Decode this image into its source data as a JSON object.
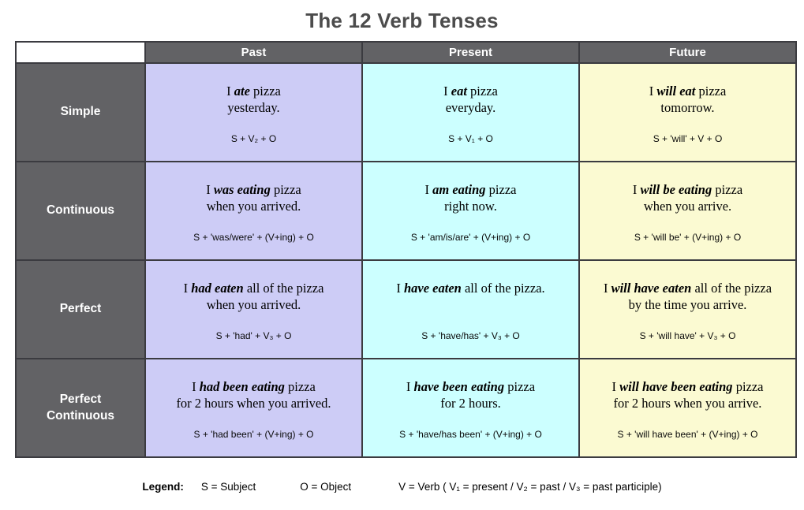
{
  "title": "The 12 Verb Tenses",
  "columns": [
    "Past",
    "Present",
    "Future"
  ],
  "rows": [
    {
      "label": "Simple",
      "cells": [
        {
          "pre": "I ",
          "verb": "ate",
          "post": " pizza",
          "line2": "yesterday.",
          "formula": "S + V₂ + O"
        },
        {
          "pre": "I ",
          "verb": "eat",
          "post": " pizza",
          "line2": "everyday.",
          "formula": "S + V₁ + O"
        },
        {
          "pre": "I ",
          "verb": "will eat",
          "post": " pizza",
          "line2": "tomorrow.",
          "formula": "S + 'will' + V + O"
        }
      ]
    },
    {
      "label": "Continuous",
      "cells": [
        {
          "pre": "I ",
          "verb": "was eating",
          "post": " pizza",
          "line2": "when you arrived.",
          "formula": "S + 'was/were' + (V+ing) + O"
        },
        {
          "pre": "I ",
          "verb": "am eating",
          "post": " pizza",
          "line2": "right now.",
          "formula": "S + 'am/is/are' + (V+ing) + O"
        },
        {
          "pre": "I ",
          "verb": "will be eating",
          "post": " pizza",
          "line2": "when you arrive.",
          "formula": "S + 'will be' + (V+ing) + O"
        }
      ]
    },
    {
      "label": "Perfect",
      "cells": [
        {
          "pre": "I ",
          "verb": "had eaten",
          "post": " all of the pizza",
          "line2": "when you arrived.",
          "formula": "S + 'had' + V₃ + O"
        },
        {
          "pre": "I ",
          "verb": "have eaten",
          "post": " all of the pizza.",
          "line2": "",
          "formula": "S + 'have/has' + V₃ + O"
        },
        {
          "pre": "I ",
          "verb": "will have eaten",
          "post": " all of the pizza",
          "line2": "by the time you arrive.",
          "formula": "S + 'will have' + V₃ + O"
        }
      ]
    },
    {
      "label": "Perfect\nContinuous",
      "cells": [
        {
          "pre": "I ",
          "verb": "had been eating",
          "post": " pizza",
          "line2": "for 2 hours when you arrived.",
          "formula": "S + 'had been' + (V+ing) + O"
        },
        {
          "pre": "I ",
          "verb": "have been eating",
          "post": " pizza",
          "line2": "for 2 hours.",
          "formula": "S + 'have/has been' + (V+ing) + O"
        },
        {
          "pre": "I ",
          "verb": "will have been eating",
          "post": " pizza",
          "line2": "for 2 hours when you arrive.",
          "formula": "S + 'will have been' + (V+ing) + O"
        }
      ]
    }
  ],
  "legend": {
    "label": "Legend:",
    "items": [
      "S = Subject",
      "O = Object",
      "V = Verb  ( V₁ = present  /  V₂ = past  /  V₃ = past participle)"
    ]
  },
  "colors": {
    "header_bg": "#626265",
    "past_bg": "#cdccf6",
    "present_bg": "#ccffff",
    "future_bg": "#fbfad2",
    "border": "#3b3b40",
    "title_color": "#4c4c4c"
  }
}
